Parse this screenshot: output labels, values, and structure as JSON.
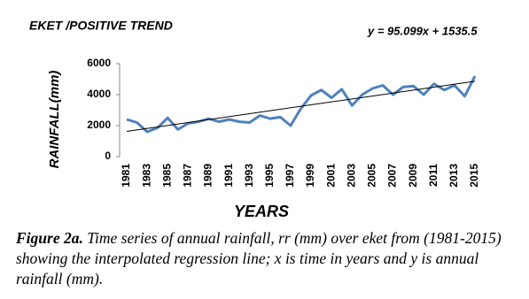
{
  "chart_data": {
    "type": "line",
    "title": "EKET /POSITIVE TREND",
    "equation": "y = 95.099x + 1535.5",
    "y_label": "RAINFALL(mm)",
    "x_label": "YEARS",
    "categories": [
      "1981",
      null,
      "1983",
      null,
      "1985",
      null,
      "1987",
      null,
      "1989",
      null,
      "1991",
      null,
      "1993",
      null,
      "1995",
      null,
      "1997",
      null,
      "1999",
      null,
      "2001",
      null,
      "2003",
      null,
      "2005",
      null,
      "2007",
      null,
      "2009",
      null,
      "2011",
      null,
      "2013",
      null,
      "2015"
    ],
    "series": [
      {
        "color": "#4f81bd",
        "values": [
          2400,
          2200,
          1600,
          1850,
          2500,
          1750,
          2150,
          2250,
          2450,
          2250,
          2400,
          2250,
          2200,
          2650,
          2450,
          2550,
          2000,
          3100,
          3950,
          4300,
          3800,
          4350,
          3300,
          4000,
          4400,
          4600,
          4000,
          4500,
          4550,
          4000,
          4700,
          4300,
          4600,
          3900,
          5200
        ]
      }
    ],
    "trend_line": {
      "color": "#000000",
      "values": [
        1631,
        4864
      ]
    },
    "ylim": [
      0,
      6000
    ],
    "yticks": [
      0,
      2000,
      4000,
      6000
    ]
  },
  "caption": {
    "label": "Figure 2a.",
    "text": "Time series of annual rainfall, rr (mm) over eket from (1981-2015) showing the interpolated regression line; x is time in years and y is annual rainfall (mm)."
  }
}
